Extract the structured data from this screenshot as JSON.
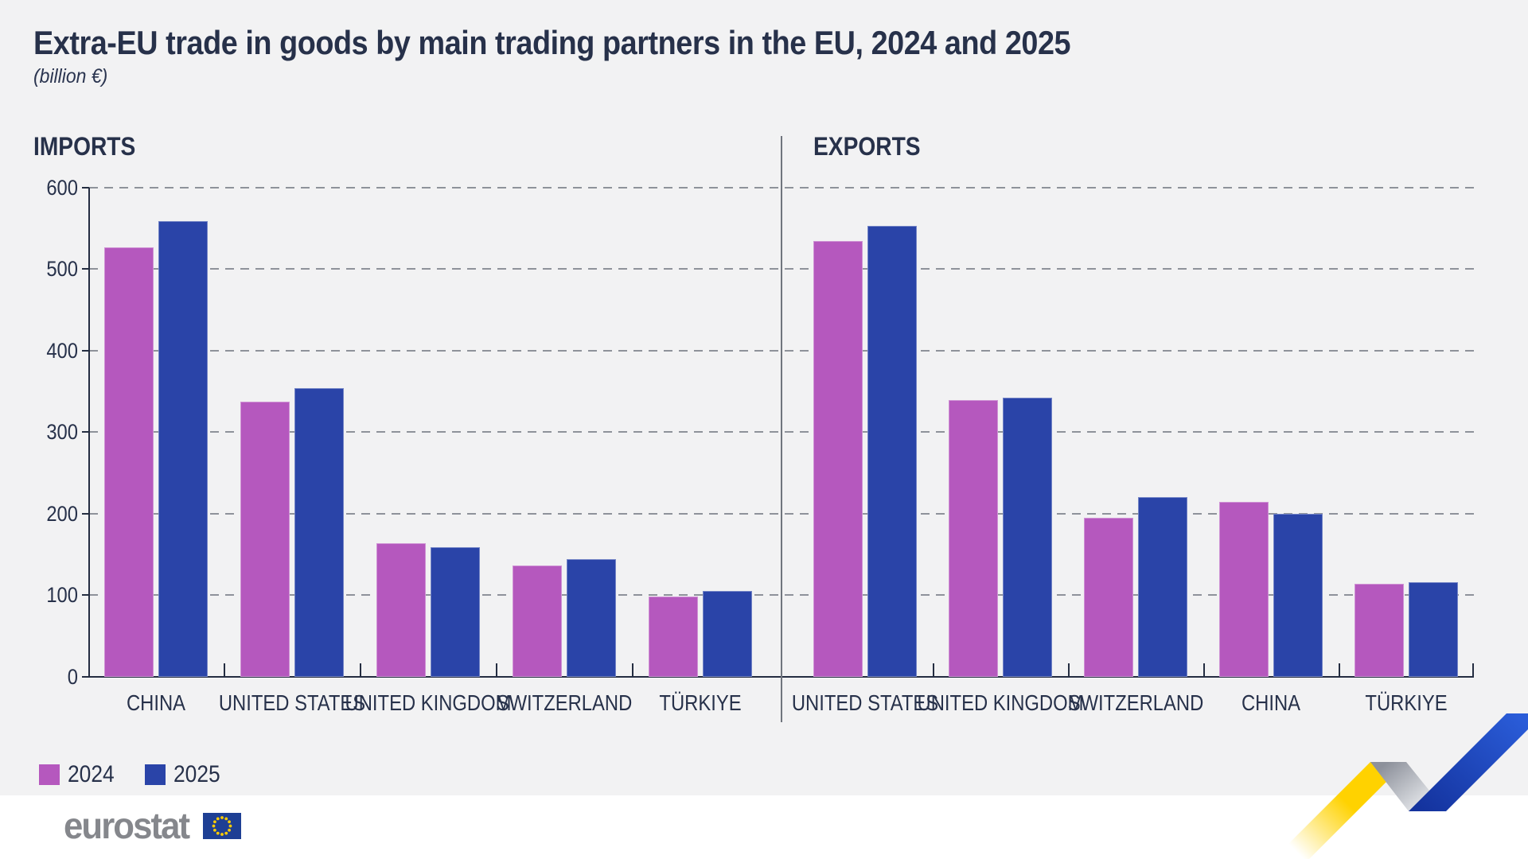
{
  "title": "Extra-EU trade in goods by main trading partners in the EU, 2024 and 2025",
  "subtitle": "(billion €)",
  "legend": {
    "items": [
      {
        "label": "2024",
        "color": "#b558be"
      },
      {
        "label": "2025",
        "color": "#2a44a8"
      }
    ]
  },
  "logo": {
    "text": "eurostat"
  },
  "colors": {
    "background": "#f2f2f3",
    "bottom_strip": "#ffffff",
    "text": "#27314a",
    "series_2024": "#b558be",
    "series_2025": "#2a44a8",
    "gridline": "#8e929a",
    "axis": "#242d41",
    "divider": "#70757e",
    "logo_gray": "#85878c",
    "flag_blue": "#1e3f94",
    "flag_stars": "#ffcc00",
    "ribbon_yellow": "#ffd200",
    "ribbon_blue_dark": "#14339e",
    "ribbon_blue_light": "#2a5cd8"
  },
  "chart_data": {
    "type": "bar",
    "title": "Extra-EU trade in goods by main trading partners in the EU, 2024 and 2025",
    "unit": "billion €",
    "ylabel": "",
    "xlabel": "",
    "ylim": [
      0,
      600
    ],
    "yticks": [
      0,
      100,
      200,
      300,
      400,
      500,
      600
    ],
    "grid": "horizontal dashed",
    "legend_position": "bottom-left",
    "series_names": [
      "2024",
      "2025"
    ],
    "panels": [
      {
        "title": "IMPORTS",
        "categories": [
          "CHINA",
          "UNITED STATES",
          "UNITED KINGDOM",
          "SWITZERLAND",
          "TÜRKIYE"
        ],
        "series": [
          {
            "name": "2024",
            "values": [
              526,
              337,
              164,
              136,
              98
            ]
          },
          {
            "name": "2025",
            "values": [
              559,
              354,
              159,
              144,
              105
            ]
          }
        ]
      },
      {
        "title": "EXPORTS",
        "categories": [
          "UNITED STATES",
          "UNITED KINGDOM",
          "SWITZERLAND",
          "CHINA",
          "TÜRKIYE"
        ],
        "series": [
          {
            "name": "2024",
            "values": [
              534,
              339,
              195,
              214,
              114
            ]
          },
          {
            "name": "2025",
            "values": [
              553,
              342,
              220,
              200,
              116
            ]
          }
        ]
      }
    ]
  }
}
